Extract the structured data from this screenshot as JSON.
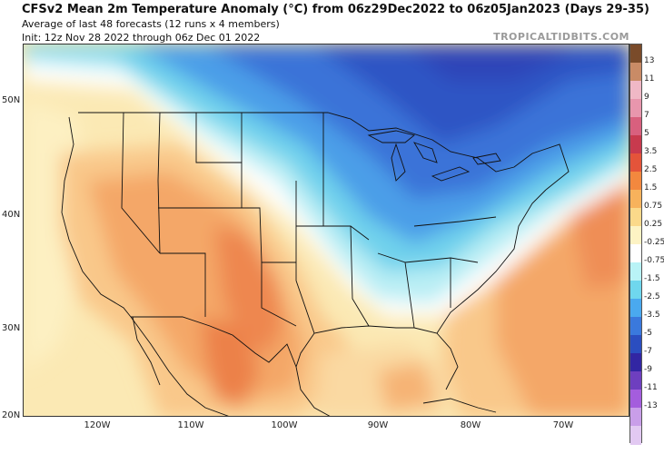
{
  "header": {
    "title": "CFSv2 Mean 2m Temperature Anomaly (°C) from 06z29Dec2022 to 06z05Jan2023 (Days 29-35)",
    "subtitle1": "Average of last 48 forecasts (12 runs x 4 members)",
    "subtitle2": "Init: 12z Nov 28 2022 through 06z Dec 01 2022",
    "brand": "TROPICALTIDBITS.COM"
  },
  "axes": {
    "lat_labels": [
      "50N",
      "40N",
      "30N",
      "20N"
    ],
    "lon_labels": [
      "120W",
      "110W",
      "100W",
      "90W",
      "80W",
      "70W"
    ]
  },
  "colorbar": {
    "labels": [
      "13",
      "11",
      "9",
      "7",
      "5",
      "3.5",
      "2.5",
      "1.5",
      "0.75",
      "0.25",
      "-0.25",
      "-0.75",
      "-1.5",
      "-2.5",
      "-3.5",
      "-5",
      "-7",
      "-9",
      "-11",
      "-13"
    ],
    "colors": [
      "#7a4b2a",
      "#c98b66",
      "#f0b8c6",
      "#e896ad",
      "#d8607e",
      "#c83a4e",
      "#e4543a",
      "#f3883e",
      "#f7b25c",
      "#fbd98a",
      "#fdf3c4",
      "#ffffff",
      "#b9f3f6",
      "#6fd7ee",
      "#4aa9ef",
      "#3a79dd",
      "#2b4ec0",
      "#3226a3",
      "#6e3fbf",
      "#a45ddd",
      "#c99ee9",
      "#e2c9f2"
    ]
  },
  "map": {
    "region": "Contiguous United States, Mexico, Gulf of Mexico, western Atlantic",
    "lat_range": [
      20,
      55
    ],
    "lon_range": [
      -127,
      -65
    ],
    "anomaly_summary": {
      "warm": "Southwest US and northern Mexico, Gulf coast of Mexico, western Atlantic",
      "cold": "Northern and central US, Great Lakes, Northeast, Canada"
    }
  }
}
